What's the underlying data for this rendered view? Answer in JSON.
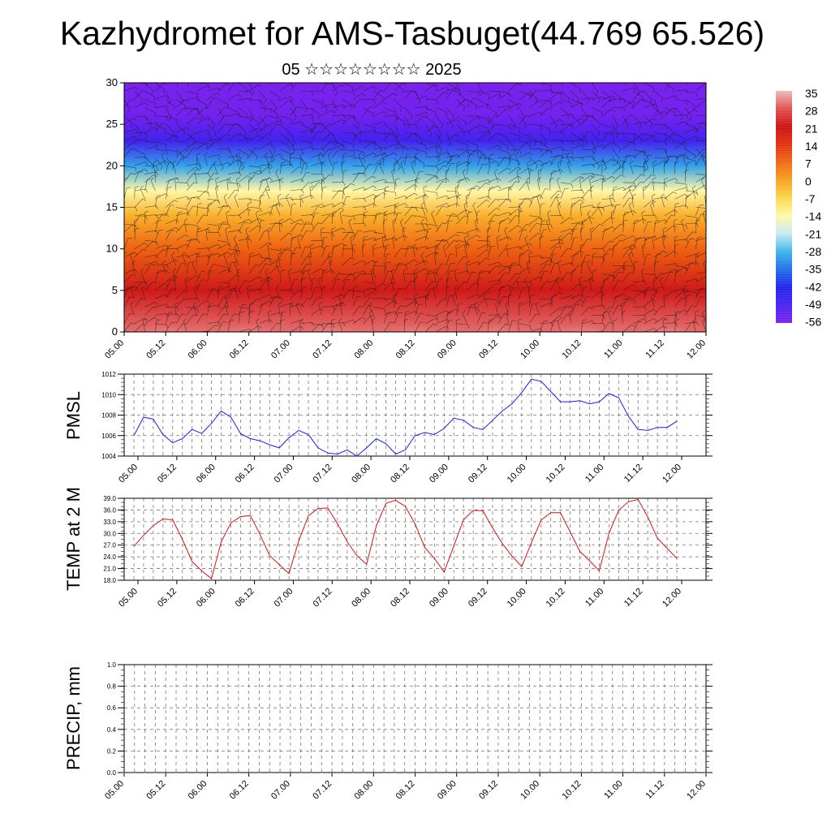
{
  "header": {
    "title": "Kazhydromet for AMS-Tasbuget(44.769 65.526)",
    "subtitle": "05 ☆☆☆☆☆☆☆☆ 2025"
  },
  "chart_data": [
    {
      "type": "heatmap",
      "name": "cross-section",
      "x_tick_labels": [
        "05.00",
        "05.12",
        "06.00",
        "06.12",
        "07.00",
        "07.12",
        "08.00",
        "08.12",
        "09.00",
        "09.12",
        "10.00",
        "10.12",
        "11.00",
        "11.12",
        "12.00"
      ],
      "y_ticks": [
        0,
        5,
        10,
        15,
        20,
        25,
        30
      ],
      "ylim": [
        0,
        30
      ],
      "colorbar": {
        "labels": [
          "35",
          "28",
          "21",
          "14",
          "7",
          "0",
          "-7",
          "-14",
          "-21",
          "-28",
          "-35",
          "-42",
          "-49",
          "-56"
        ],
        "colors": [
          "#f0b8b8",
          "#e05050",
          "#cc1010",
          "#e23010",
          "#f06a10",
          "#f7a020",
          "#fdd74a",
          "#fff8a8",
          "#c8eaf5",
          "#3cb5ec",
          "#1e6fe6",
          "#2222ee",
          "#4a22ee",
          "#7a22ee"
        ]
      },
      "temperature_layers": [
        {
          "level": 0,
          "value": 30
        },
        {
          "level": 5,
          "value": 22
        },
        {
          "level": 10,
          "value": 8
        },
        {
          "level": 14,
          "value": -2
        },
        {
          "level": 17,
          "value": -14
        },
        {
          "level": 20,
          "value": -30
        },
        {
          "level": 23,
          "value": -48
        },
        {
          "level": 26,
          "value": -55
        },
        {
          "level": 30,
          "value": -58
        }
      ],
      "wind_barbs": "present"
    },
    {
      "type": "line",
      "name": "pmsl",
      "ylabel": "PMSL",
      "ylim": [
        1004,
        1012
      ],
      "y_ticks": [
        "1004",
        "1006",
        "1008",
        "1010",
        "1012"
      ],
      "x_tick_labels": [
        "05.00",
        "05.12",
        "06.00",
        "06.12",
        "07.00",
        "07.12",
        "08.00",
        "08.12",
        "09.00",
        "09.12",
        "10.00",
        "10.12",
        "11.00",
        "11.12",
        "12.00"
      ],
      "color": "#1a1aff",
      "values": [
        1006.0,
        1007.8,
        1007.6,
        1006.1,
        1005.3,
        1005.7,
        1006.6,
        1006.2,
        1007.2,
        1008.4,
        1007.8,
        1006.2,
        1005.7,
        1005.5,
        1005.1,
        1004.8,
        1005.8,
        1006.5,
        1006.1,
        1004.8,
        1004.3,
        1004.2,
        1004.6,
        1004.0,
        1004.8,
        1005.7,
        1005.2,
        1004.2,
        1004.6,
        1006.0,
        1006.3,
        1006.1,
        1006.7,
        1007.7,
        1007.5,
        1006.8,
        1006.6,
        1007.5,
        1008.4,
        1009.1,
        1010.2,
        1011.5,
        1011.3,
        1010.3,
        1009.3,
        1009.3,
        1009.4,
        1009.1,
        1009.3,
        1010.1,
        1009.7,
        1007.9,
        1006.6,
        1006.5,
        1006.8,
        1006.8,
        1007.4
      ],
      "x_points": 57
    },
    {
      "type": "line",
      "name": "temp2m",
      "ylabel": "TEMP at 2 M",
      "ylim": [
        18,
        39
      ],
      "y_ticks": [
        "18.0",
        "21.0",
        "24.0",
        "27.0",
        "30.0",
        "33.0",
        "36.0",
        "39.0"
      ],
      "x_tick_labels": [
        "05.00",
        "05.12",
        "06.00",
        "06.12",
        "07.00",
        "07.12",
        "08.00",
        "08.12",
        "09.00",
        "09.12",
        "10.00",
        "10.12",
        "11.00",
        "11.12",
        "12.00"
      ],
      "color": "#e01010",
      "values": [
        26.7,
        29.5,
        32.0,
        33.7,
        33.5,
        28.5,
        22.8,
        20.4,
        18.4,
        27.8,
        32.7,
        34.3,
        34.6,
        29.8,
        24.3,
        22.0,
        19.7,
        28.1,
        34.5,
        36.4,
        36.5,
        32.5,
        27.9,
        24.3,
        22.1,
        31.9,
        37.7,
        38.5,
        36.9,
        32.5,
        26.4,
        23.6,
        20.1,
        26.8,
        33.5,
        35.9,
        35.8,
        31.4,
        27.4,
        24.2,
        21.5,
        27.6,
        33.4,
        35.3,
        35.3,
        30.4,
        25.4,
        23.0,
        20.4,
        30.0,
        35.9,
        38.1,
        38.7,
        34.2,
        28.8,
        26.2,
        23.6
      ],
      "x_points": 57
    },
    {
      "type": "bar",
      "name": "precip",
      "ylabel": "PRECIP, mm",
      "ylim": [
        0,
        1.0
      ],
      "y_ticks": [
        "0.0",
        "0.2",
        "0.4",
        "0.6",
        "0.8",
        "1.0"
      ],
      "x_tick_labels": [
        "05.00",
        "05.12",
        "06.00",
        "06.12",
        "07.00",
        "07.12",
        "08.00",
        "08.12",
        "09.00",
        "09.12",
        "10.00",
        "10.12",
        "11.00",
        "11.12",
        "12.00"
      ],
      "values": [
        0,
        0,
        0,
        0,
        0,
        0,
        0,
        0,
        0,
        0,
        0,
        0,
        0,
        0,
        0,
        0,
        0,
        0,
        0,
        0,
        0,
        0,
        0,
        0,
        0,
        0,
        0,
        0,
        0,
        0,
        0,
        0,
        0,
        0,
        0,
        0,
        0,
        0,
        0,
        0,
        0,
        0,
        0,
        0,
        0,
        0,
        0,
        0,
        0,
        0,
        0,
        0,
        0,
        0,
        0,
        0,
        0
      ],
      "color": "#2e7d32"
    }
  ]
}
